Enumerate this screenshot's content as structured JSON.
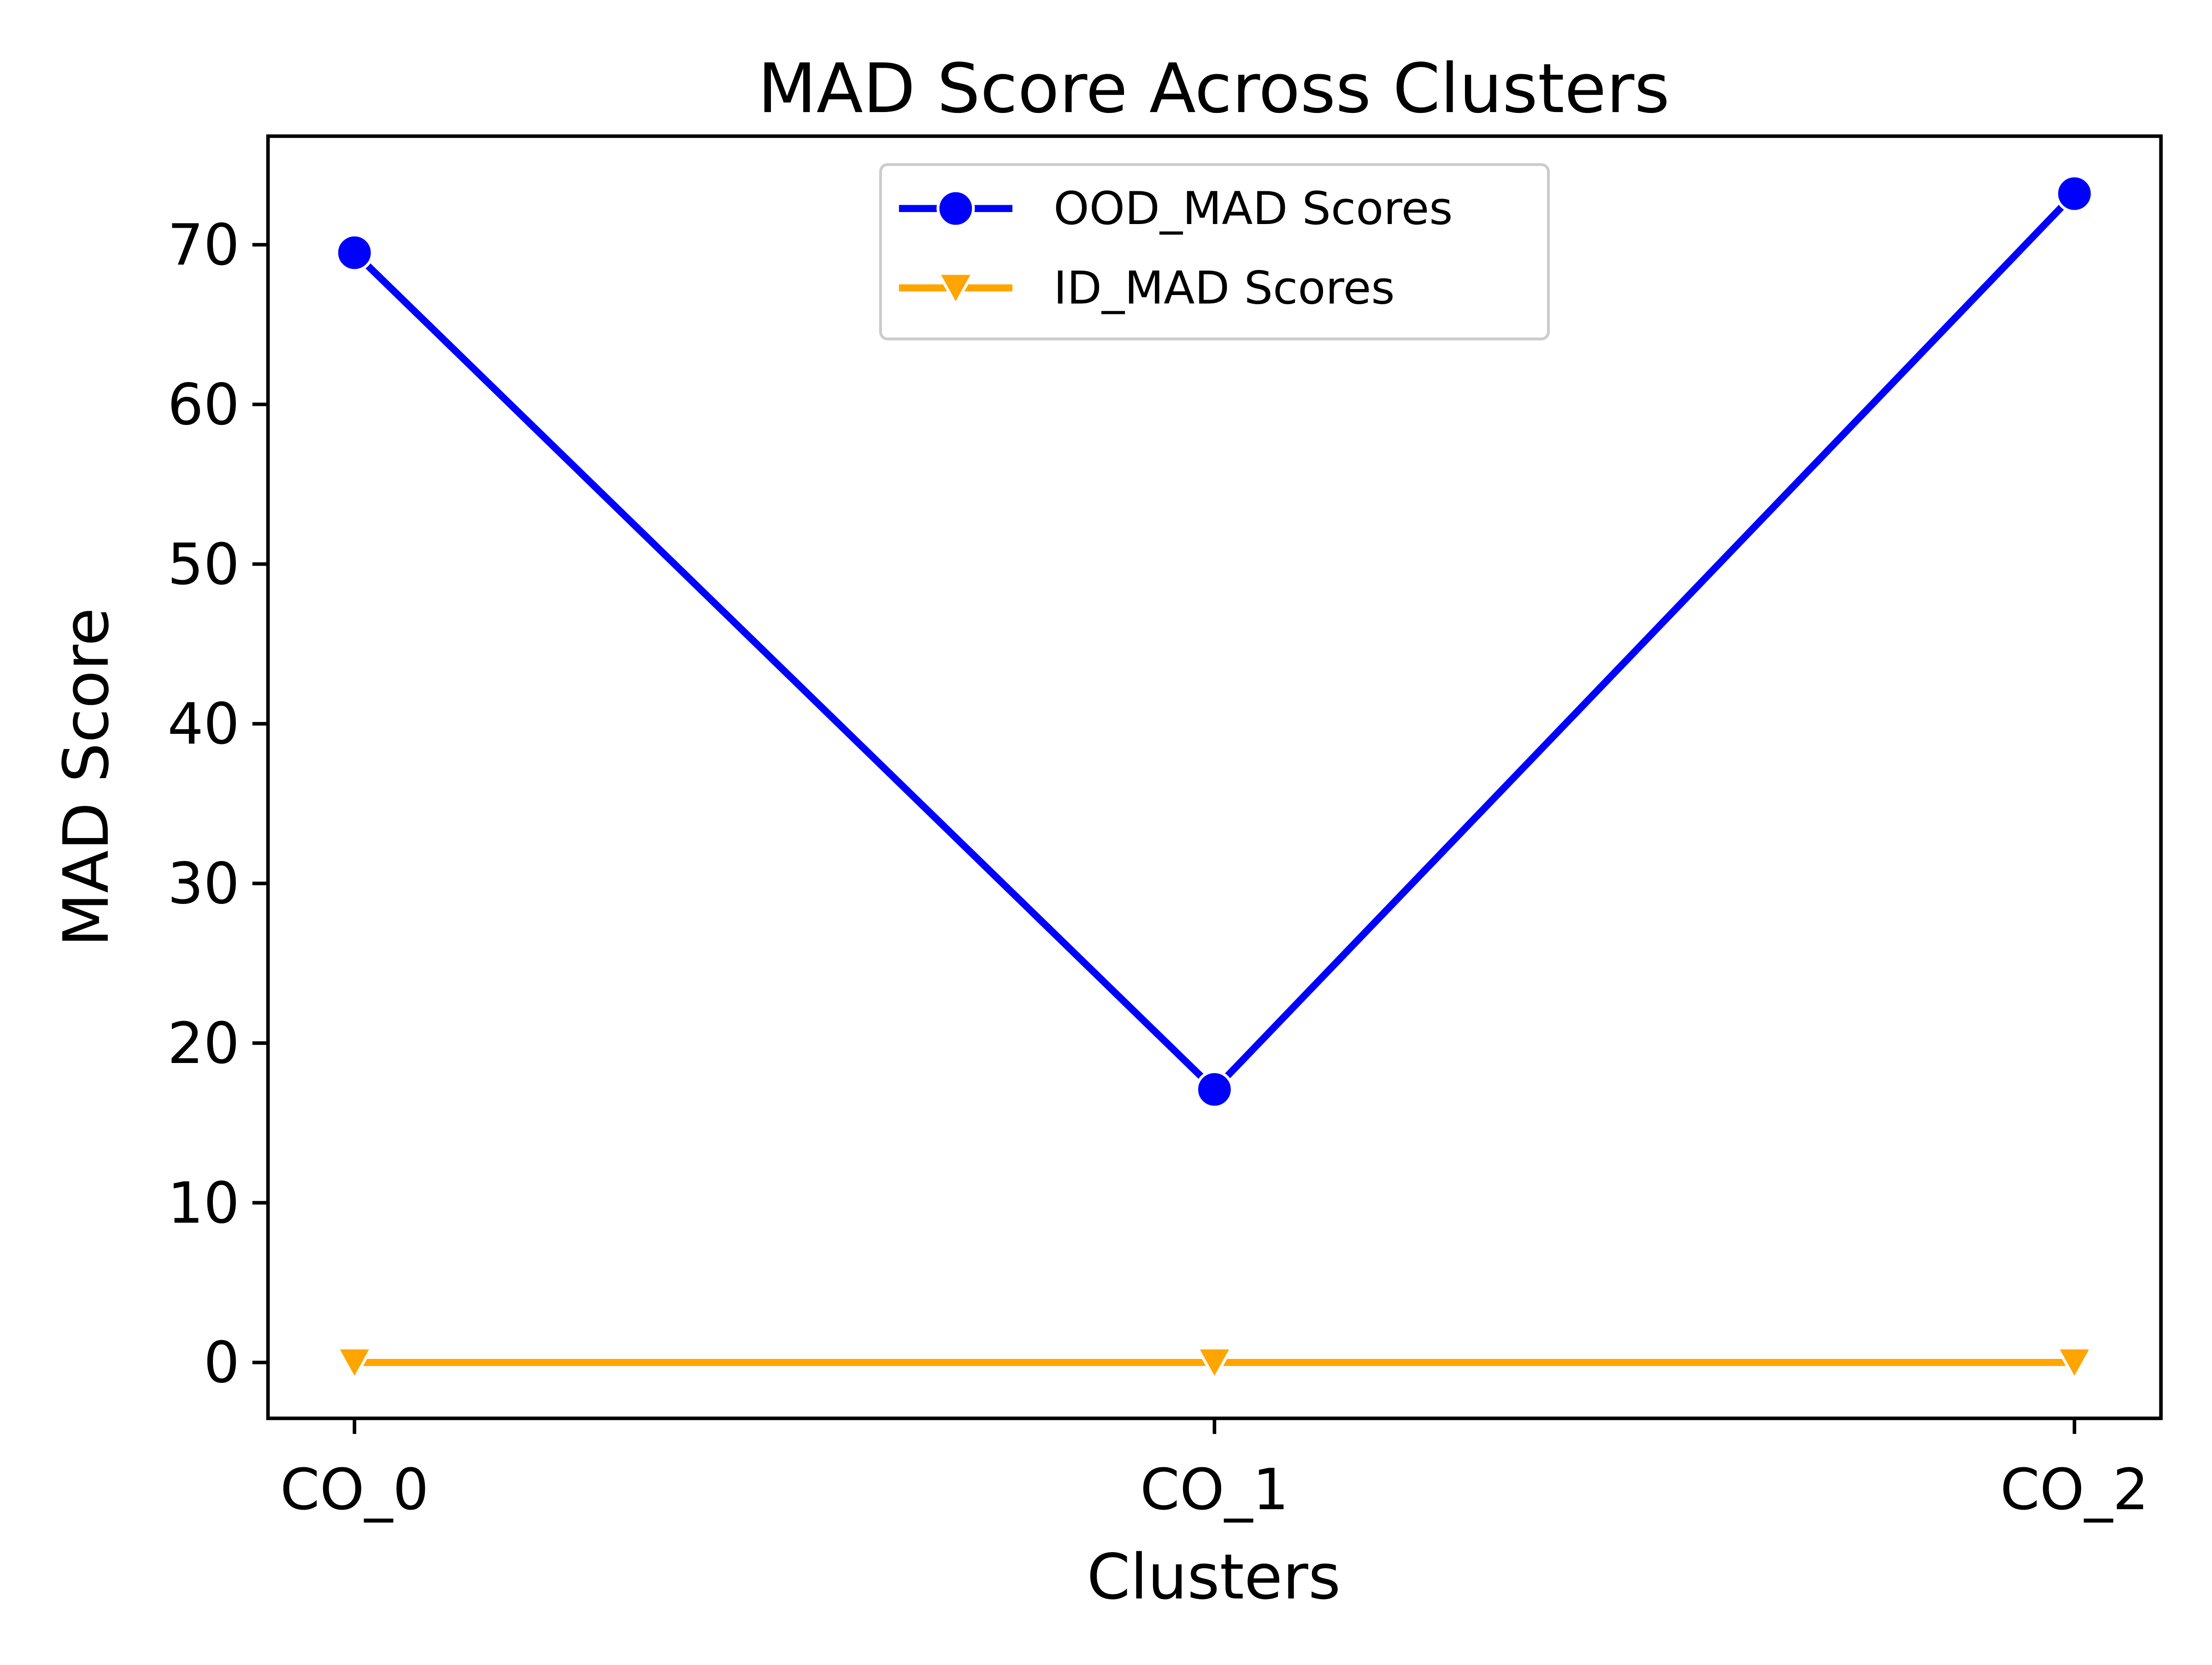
{
  "chart_data": {
    "type": "line",
    "title": "MAD Score Across Clusters",
    "xlabel": "Clusters",
    "ylabel": "MAD Score",
    "categories": [
      "CO_0",
      "CO_1",
      "CO_2"
    ],
    "ylim": [
      -3.5,
      76.8
    ],
    "yticks": [
      0,
      10,
      20,
      30,
      40,
      50,
      60,
      70
    ],
    "grid": false,
    "legend_position": "upper center",
    "series": [
      {
        "name": "OOD_MAD Scores",
        "values": [
          69.5,
          17.1,
          73.2
        ],
        "color": "#0000ff",
        "marker": "circle"
      },
      {
        "name": "ID_MAD Scores",
        "values": [
          0.0,
          0.0,
          0.0
        ],
        "color": "#ffa500",
        "marker": "triangle-down"
      }
    ]
  }
}
